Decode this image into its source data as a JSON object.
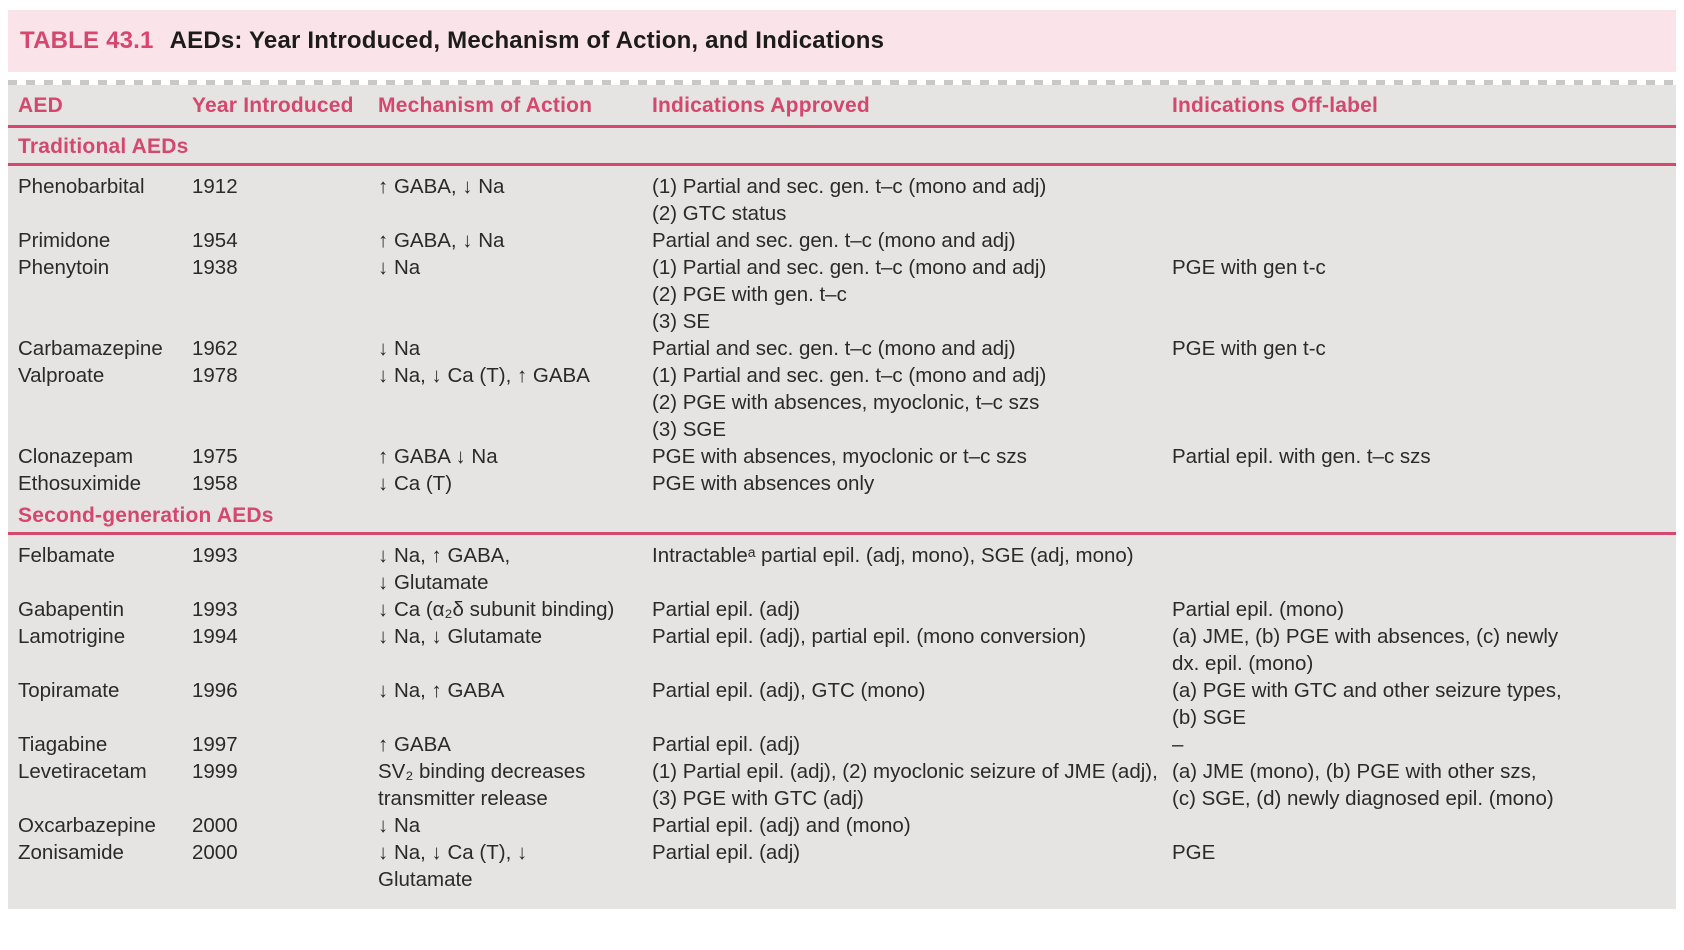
{
  "title": {
    "label": "TABLE 43.1",
    "text": "AEDs: Year Introduced, Mechanism of Action, and Indications"
  },
  "columns": [
    {
      "key": "aed",
      "label": "AED"
    },
    {
      "key": "year",
      "label": "Year Introduced"
    },
    {
      "key": "mechanism",
      "label": "Mechanism of Action"
    },
    {
      "key": "approved",
      "label": "Indications Approved"
    },
    {
      "key": "off_label",
      "label": "Indications Off-label"
    }
  ],
  "sections": [
    {
      "header": "Traditional AEDs",
      "rows": [
        {
          "aed": "Phenobarbital",
          "year": "1912",
          "mechanism": [
            "↑ GABA, ↓ Na"
          ],
          "approved": [
            "(1) Partial and sec. gen. t–c (mono and adj)",
            "(2) GTC status"
          ],
          "off_label": []
        },
        {
          "aed": "Primidone",
          "year": "1954",
          "mechanism": [
            "↑ GABA, ↓ Na"
          ],
          "approved": [
            "Partial and sec. gen. t–c (mono and adj)"
          ],
          "off_label": []
        },
        {
          "aed": "Phenytoin",
          "year": "1938",
          "mechanism": [
            "↓ Na"
          ],
          "approved": [
            "(1) Partial and sec. gen. t–c (mono and adj)",
            "(2) PGE with gen. t–c",
            "(3) SE"
          ],
          "off_label": [
            "PGE with gen t-c"
          ]
        },
        {
          "aed": "Carbamazepine",
          "year": "1962",
          "mechanism": [
            "↓ Na"
          ],
          "approved": [
            "Partial and sec. gen. t–c (mono and adj)"
          ],
          "off_label": [
            "PGE with gen t-c"
          ]
        },
        {
          "aed": "Valproate",
          "year": "1978",
          "mechanism": [
            "↓ Na, ↓ Ca (T), ↑ GABA"
          ],
          "approved": [
            "(1) Partial and sec. gen. t–c (mono and adj)",
            "(2) PGE with absences, myoclonic, t–c szs",
            "(3) SGE"
          ],
          "off_label": []
        },
        {
          "aed": "Clonazepam",
          "year": "1975",
          "mechanism": [
            "↑ GABA ↓ Na"
          ],
          "approved": [
            "PGE with absences, myoclonic or t–c szs"
          ],
          "off_label": [
            "Partial epil. with gen. t–c szs"
          ]
        },
        {
          "aed": "Ethosuximide",
          "year": "1958",
          "mechanism": [
            "↓ Ca (T)"
          ],
          "approved": [
            "PGE with absences only"
          ],
          "off_label": []
        }
      ]
    },
    {
      "header": "Second-generation AEDs",
      "rows": [
        {
          "aed": "Felbamate",
          "year": "1993",
          "mechanism": [
            "↓ Na, ↑ GABA,",
            "↓ Glutamate"
          ],
          "approved": [
            "Intractableᵃ partial epil. (adj, mono), SGE (adj, mono)"
          ],
          "off_label": []
        },
        {
          "aed": "Gabapentin",
          "year": "1993",
          "mechanism": [
            "↓ Ca (α₂δ subunit binding)"
          ],
          "approved": [
            "Partial epil. (adj)"
          ],
          "off_label": [
            "Partial epil. (mono)"
          ]
        },
        {
          "aed": "Lamotrigine",
          "year": "1994",
          "mechanism": [
            "↓ Na, ↓ Glutamate"
          ],
          "approved": [
            "Partial epil. (adj), partial epil. (mono conversion)"
          ],
          "off_label": [
            "(a) JME, (b) PGE with absences, (c) newly",
            "dx. epil. (mono)"
          ]
        },
        {
          "aed": "Topiramate",
          "year": "1996",
          "mechanism": [
            "↓ Na, ↑ GABA"
          ],
          "approved": [
            "Partial epil. (adj), GTC (mono)"
          ],
          "off_label": [
            "(a) PGE with GTC and other seizure types,",
            "(b) SGE"
          ]
        },
        {
          "aed": "Tiagabine",
          "year": "1997",
          "mechanism": [
            "↑ GABA"
          ],
          "approved": [
            "Partial epil. (adj)"
          ],
          "off_label": [
            "–"
          ]
        },
        {
          "aed": "Levetiracetam",
          "year": "1999",
          "mechanism": [
            "SV₂ binding decreases",
            "transmitter release"
          ],
          "approved": [
            "(1) Partial epil. (adj), (2) myoclonic seizure of JME (adj),",
            "(3) PGE with GTC (adj)"
          ],
          "off_label": [
            "(a) JME (mono), (b) PGE with other szs,",
            "(c) SGE, (d) newly diagnosed epil. (mono)"
          ]
        },
        {
          "aed": "Oxcarbazepine",
          "year": "2000",
          "mechanism": [
            "↓ Na"
          ],
          "approved": [
            "Partial epil. (adj) and (mono)"
          ],
          "off_label": []
        },
        {
          "aed": "Zonisamide",
          "year": "2000",
          "mechanism": [
            "↓ Na, ↓ Ca (T), ↓",
            "Glutamate"
          ],
          "approved": [
            "Partial epil. (adj)"
          ],
          "off_label": [
            "PGE"
          ]
        }
      ]
    }
  ],
  "colors": {
    "accent_pink": "#d5476d",
    "banner_bg": "#fbe3ea",
    "table_bg": "#e5e4e2",
    "body_text": "#2a2a2a"
  }
}
